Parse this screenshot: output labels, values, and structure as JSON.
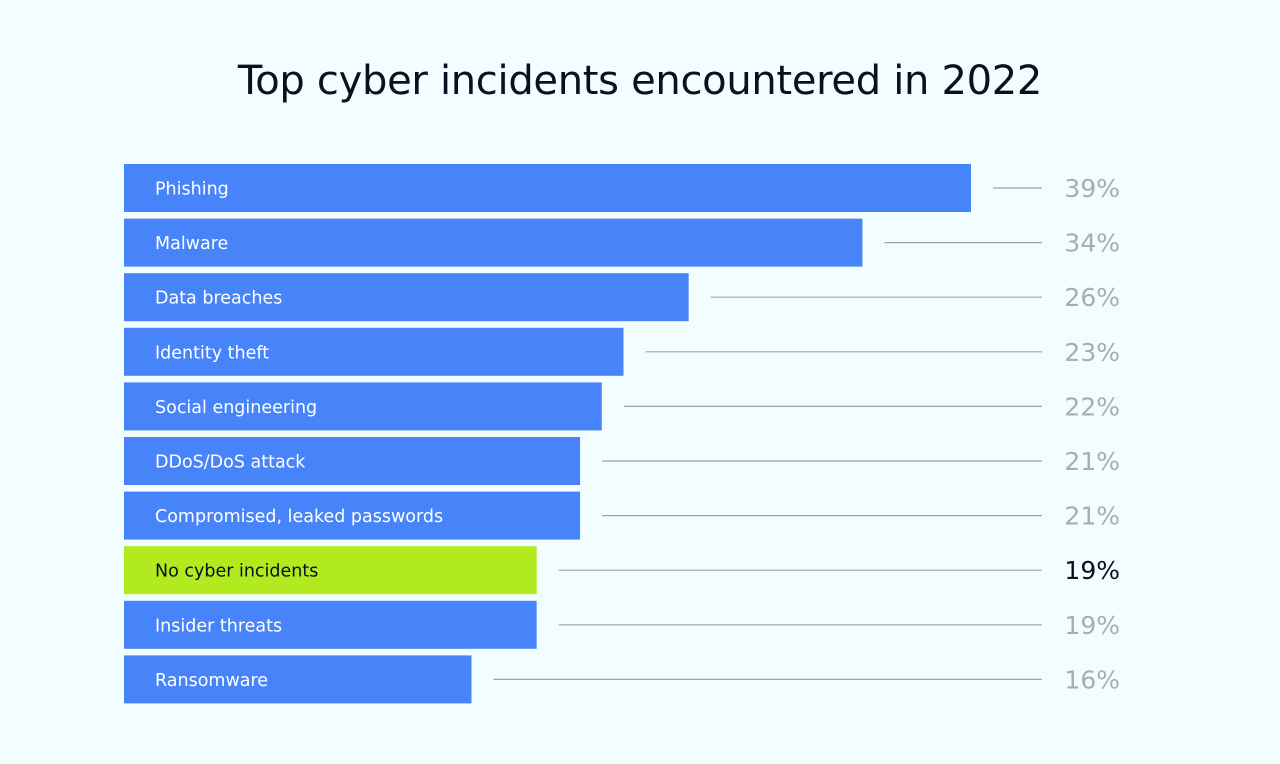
{
  "chart_data": {
    "type": "bar",
    "orientation": "horizontal",
    "title": "Top cyber incidents encountered in 2022",
    "xlabel": "",
    "ylabel": "",
    "xlim": [
      0,
      39
    ],
    "categories": [
      "Phishing",
      "Malware",
      "Data breaches",
      "Identity theft",
      "Social engineering",
      "DDoS/DoS attack",
      "Compromised, leaked passwords",
      "No cyber incidents",
      "Insider threats",
      "Ransomware"
    ],
    "values": [
      39,
      34,
      26,
      23,
      22,
      21,
      21,
      19,
      19,
      16
    ],
    "value_labels": [
      "39%",
      "34%",
      "26%",
      "23%",
      "22%",
      "21%",
      "21%",
      "19%",
      "19%",
      "16%"
    ],
    "highlight_category": "No cyber incidents",
    "colors": {
      "bar": "#4784fa",
      "highlight_bar": "#b1eb1f",
      "background": "#f1fdfe",
      "leader_line": "#9aa7b2",
      "value_text": "#a7adb4",
      "highlight_text": "#0b0f1f",
      "title_text": "#0b0f1f"
    }
  }
}
